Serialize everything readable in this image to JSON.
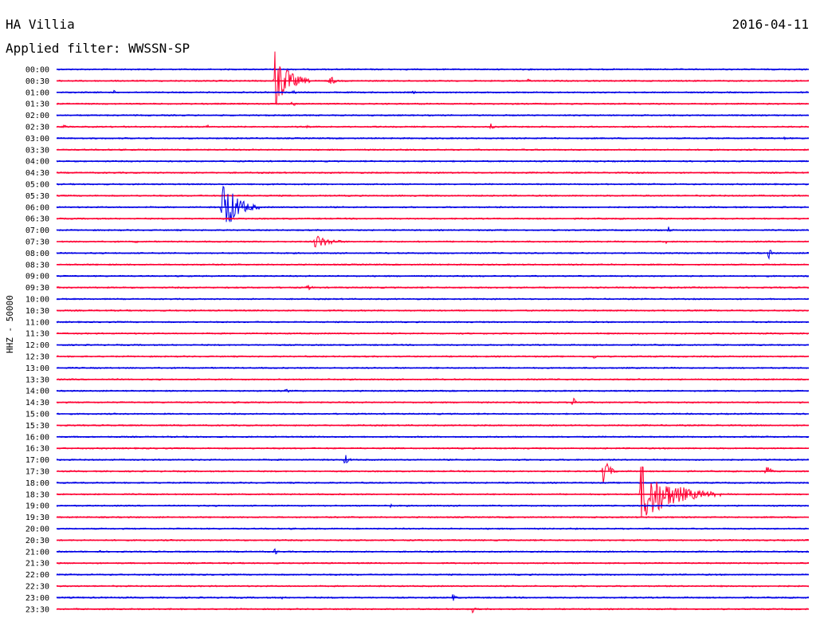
{
  "header": {
    "station": "HA Villia",
    "date": "2016-04-11",
    "filter_label": "Applied filter: WWSSN-SP"
  },
  "chart_data": {
    "type": "line",
    "title": "HA Villia",
    "subtitle": "Applied filter: WWSSN-SP",
    "ylabel": "HHZ - 50000",
    "xlabel": "",
    "x_range_minutes": [
      0,
      30
    ],
    "grid": false,
    "colors": {
      "even": "#0000e6",
      "odd": "#ff0033"
    },
    "rows": [
      {
        "label": "00:00",
        "events": []
      },
      {
        "label": "00:30",
        "events": [
          {
            "t": 8.7,
            "amp": 40,
            "dur": 1.4
          },
          {
            "t": 10.9,
            "amp": 8,
            "dur": 0.5
          },
          {
            "t": 18.8,
            "amp": 3,
            "dur": 0.3
          }
        ]
      },
      {
        "label": "01:00",
        "events": [
          {
            "t": 2.3,
            "amp": 3,
            "dur": 0.3
          },
          {
            "t": 9.4,
            "amp": 4,
            "dur": 0.4
          },
          {
            "t": 14.2,
            "amp": 2,
            "dur": 0.6
          }
        ]
      },
      {
        "label": "01:30",
        "events": [
          {
            "t": 9.4,
            "amp": 5,
            "dur": 0.3
          }
        ]
      },
      {
        "label": "02:00",
        "events": []
      },
      {
        "label": "02:30",
        "events": [
          {
            "t": 0.3,
            "amp": 3,
            "dur": 0.5
          },
          {
            "t": 2.7,
            "amp": 2,
            "dur": 0.4
          },
          {
            "t": 6.0,
            "amp": 3,
            "dur": 0.4
          },
          {
            "t": 10.0,
            "amp": 2,
            "dur": 0.3
          },
          {
            "t": 17.3,
            "amp": 5,
            "dur": 0.3
          }
        ]
      },
      {
        "label": "03:00",
        "events": [
          {
            "t": 29.0,
            "amp": 2,
            "dur": 0.6
          }
        ]
      },
      {
        "label": "03:30",
        "events": [
          {
            "t": 23.6,
            "amp": 1.5,
            "dur": 0.4
          }
        ]
      },
      {
        "label": "04:00",
        "events": []
      },
      {
        "label": "04:30",
        "events": []
      },
      {
        "label": "05:00",
        "events": [
          {
            "t": 8.2,
            "amp": 2,
            "dur": 1.5
          }
        ]
      },
      {
        "label": "05:30",
        "events": [
          {
            "t": 23.5,
            "amp": 1.5,
            "dur": 0.4
          }
        ]
      },
      {
        "label": "06:00",
        "events": [
          {
            "t": 6.6,
            "amp": 40,
            "dur": 1.5
          }
        ]
      },
      {
        "label": "06:30",
        "events": []
      },
      {
        "label": "07:00",
        "events": [
          {
            "t": 24.4,
            "amp": 5,
            "dur": 0.3
          }
        ]
      },
      {
        "label": "07:30",
        "events": [
          {
            "t": 3.1,
            "amp": 2,
            "dur": 0.8
          },
          {
            "t": 10.3,
            "amp": 10,
            "dur": 1.6
          },
          {
            "t": 24.3,
            "amp": 3,
            "dur": 0.3
          }
        ]
      },
      {
        "label": "08:00",
        "events": [
          {
            "t": 28.4,
            "amp": 8,
            "dur": 0.3
          }
        ]
      },
      {
        "label": "08:30",
        "events": []
      },
      {
        "label": "09:00",
        "events": []
      },
      {
        "label": "09:30",
        "events": [
          {
            "t": 10.0,
            "amp": 4,
            "dur": 0.6
          }
        ]
      },
      {
        "label": "10:00",
        "events": []
      },
      {
        "label": "10:30",
        "events": []
      },
      {
        "label": "11:00",
        "events": [
          {
            "t": 2.4,
            "amp": 1.5,
            "dur": 0.6
          }
        ]
      },
      {
        "label": "11:30",
        "events": []
      },
      {
        "label": "12:00",
        "events": [
          {
            "t": 21.8,
            "amp": 1.5,
            "dur": 0.5
          }
        ]
      },
      {
        "label": "12:30",
        "events": [
          {
            "t": 21.4,
            "amp": 4,
            "dur": 0.4
          }
        ]
      },
      {
        "label": "13:00",
        "events": []
      },
      {
        "label": "13:30",
        "events": [
          {
            "t": 17.9,
            "amp": 1.5,
            "dur": 0.6
          }
        ]
      },
      {
        "label": "14:00",
        "events": [
          {
            "t": 9.1,
            "amp": 5,
            "dur": 0.4
          }
        ]
      },
      {
        "label": "14:30",
        "events": [
          {
            "t": 20.6,
            "amp": 8,
            "dur": 0.5
          },
          {
            "t": 29.6,
            "amp": 3,
            "dur": 0.3
          }
        ]
      },
      {
        "label": "15:00",
        "events": []
      },
      {
        "label": "15:30",
        "events": []
      },
      {
        "label": "16:00",
        "events": []
      },
      {
        "label": "16:30",
        "events": []
      },
      {
        "label": "17:00",
        "events": [
          {
            "t": 11.5,
            "amp": 8,
            "dur": 0.4
          },
          {
            "t": 16.4,
            "amp": 2,
            "dur": 0.3
          }
        ]
      },
      {
        "label": "17:30",
        "events": [
          {
            "t": 21.8,
            "amp": 22,
            "dur": 0.6
          },
          {
            "t": 28.3,
            "amp": 16,
            "dur": 0.3
          }
        ]
      },
      {
        "label": "18:00",
        "events": []
      },
      {
        "label": "18:30",
        "events": [
          {
            "t": 23.3,
            "amp": 40,
            "dur": 3.2
          }
        ]
      },
      {
        "label": "19:00",
        "events": [
          {
            "t": 13.3,
            "amp": 3,
            "dur": 0.4
          }
        ]
      },
      {
        "label": "19:30",
        "events": []
      },
      {
        "label": "20:00",
        "events": []
      },
      {
        "label": "20:30",
        "events": []
      },
      {
        "label": "21:00",
        "events": [
          {
            "t": 1.7,
            "amp": 3,
            "dur": 0.2
          },
          {
            "t": 8.7,
            "amp": 5,
            "dur": 0.3
          }
        ]
      },
      {
        "label": "21:30",
        "events": []
      },
      {
        "label": "22:00",
        "events": []
      },
      {
        "label": "22:30",
        "events": []
      },
      {
        "label": "23:00",
        "events": [
          {
            "t": 9.0,
            "amp": 3,
            "dur": 0.3
          },
          {
            "t": 15.8,
            "amp": 5,
            "dur": 0.4
          }
        ]
      },
      {
        "label": "23:30",
        "events": [
          {
            "t": 16.6,
            "amp": 6,
            "dur": 0.3
          }
        ]
      }
    ]
  }
}
